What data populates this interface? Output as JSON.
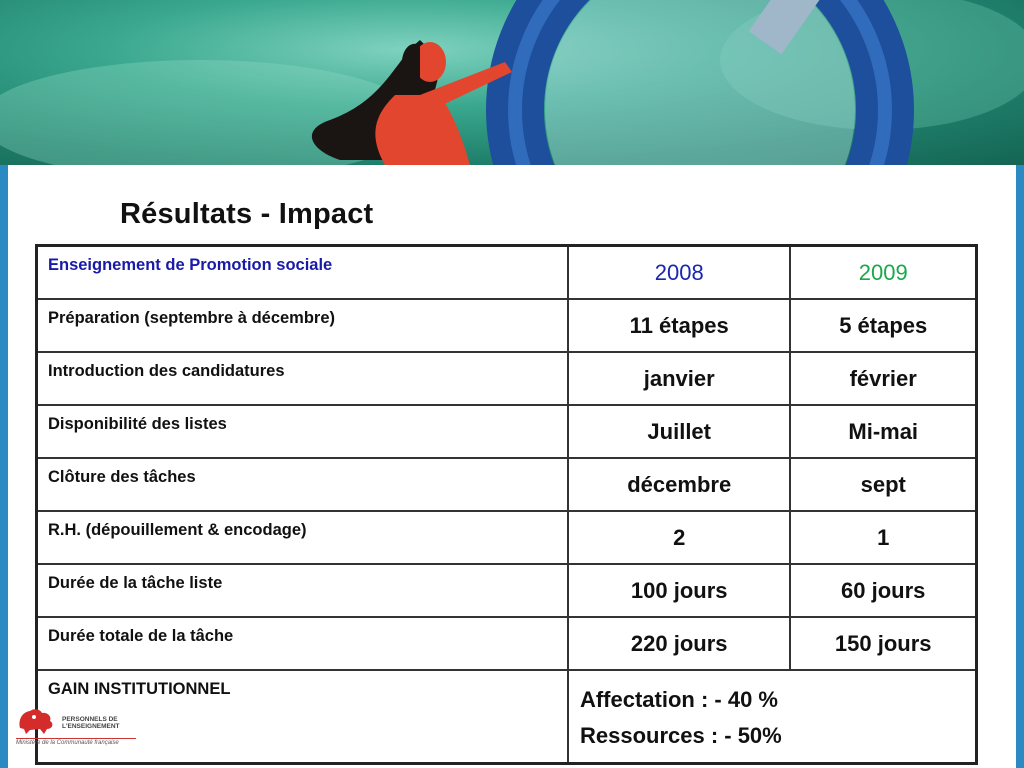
{
  "slide": {
    "title": "Résultats - Impact"
  },
  "table": {
    "header": {
      "label": "Enseignement de Promotion sociale",
      "col1": "2008",
      "col2": "2009"
    },
    "rows": [
      {
        "label": "Préparation (septembre à décembre)",
        "v2008": "11 étapes",
        "v2009": "5 étapes"
      },
      {
        "label": "Introduction des candidatures",
        "v2008": "janvier",
        "v2009": "février"
      },
      {
        "label": "Disponibilité des listes",
        "v2008": "Juillet",
        "v2009": "Mi-mai"
      },
      {
        "label": "Clôture des tâches",
        "v2008": "décembre",
        "v2009": "sept"
      },
      {
        "label": "R.H. (dépouillement & encodage)",
        "v2008": "2",
        "v2009": "1"
      },
      {
        "label": "Durée de la tâche liste",
        "v2008": "100 jours",
        "v2009": "60 jours"
      },
      {
        "label": "Durée totale de la tâche",
        "v2008": "220 jours",
        "v2009": "150 jours"
      }
    ],
    "gain": {
      "label": "GAIN INSTITUTIONNEL",
      "line1": "Affectation : - 40 %",
      "line2": "Ressources : - 50%"
    }
  },
  "footer": {
    "logo_line1": "PERSONNELS DE",
    "logo_line2": "L'ENSEIGNEMENT",
    "ministry": "Ministère de la Communauté française"
  },
  "colors": {
    "header_label": "#1a1aa8",
    "year_2008": "#1b25b0",
    "year_2009": "#1aa84a",
    "frame_blue": "#2b8ac2"
  }
}
